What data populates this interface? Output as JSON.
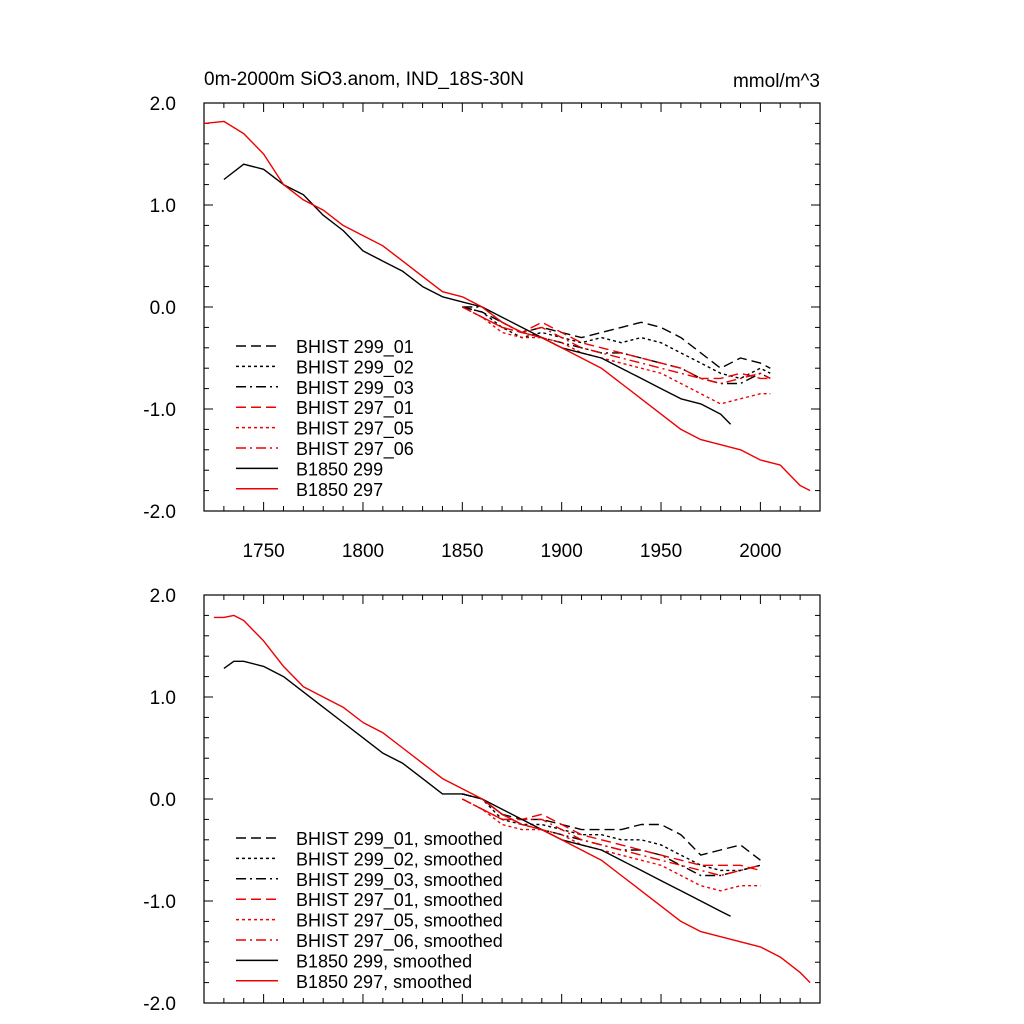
{
  "chart_data": [
    {
      "type": "line",
      "title": "0m-2000m SiO3.anom, IND_18S-30N",
      "units": "mmol/m^3",
      "xlabel": "",
      "ylabel": "",
      "xlim": [
        1720,
        2030
      ],
      "ylim": [
        -2.0,
        2.0
      ],
      "x_ticks": [
        "1750",
        "1800",
        "1850",
        "1900",
        "1950",
        "2000"
      ],
      "y_ticks": [
        "2.0",
        "1.0",
        "0.0",
        "-1.0",
        "-2.0"
      ],
      "legend_location": "lower-left",
      "series": [
        {
          "name": "BHIST 299_01",
          "color": "#000000",
          "dash": "dashed",
          "x": [
            1850,
            1860,
            1870,
            1880,
            1890,
            1900,
            1910,
            1920,
            1930,
            1940,
            1950,
            1960,
            1970,
            1980,
            1990,
            2000,
            2005
          ],
          "values": [
            0.0,
            -0.05,
            -0.15,
            -0.25,
            -0.2,
            -0.25,
            -0.3,
            -0.25,
            -0.2,
            -0.15,
            -0.2,
            -0.3,
            -0.45,
            -0.6,
            -0.5,
            -0.55,
            -0.6
          ]
        },
        {
          "name": "BHIST 299_02",
          "color": "#000000",
          "dash": "dotted",
          "x": [
            1850,
            1860,
            1870,
            1880,
            1890,
            1900,
            1910,
            1920,
            1930,
            1940,
            1950,
            1960,
            1970,
            1980,
            1990,
            2000,
            2005
          ],
          "values": [
            0.0,
            -0.05,
            -0.2,
            -0.3,
            -0.25,
            -0.3,
            -0.35,
            -0.3,
            -0.35,
            -0.3,
            -0.35,
            -0.45,
            -0.55,
            -0.65,
            -0.7,
            -0.6,
            -0.65
          ]
        },
        {
          "name": "BHIST 299_03",
          "color": "#000000",
          "dash": "dashdot",
          "x": [
            1850,
            1860,
            1870,
            1880,
            1890,
            1900,
            1910,
            1920,
            1930,
            1940,
            1950,
            1960,
            1970,
            1980,
            1990,
            2000,
            2005
          ],
          "values": [
            0.0,
            0.0,
            -0.15,
            -0.25,
            -0.3,
            -0.35,
            -0.4,
            -0.45,
            -0.45,
            -0.5,
            -0.55,
            -0.6,
            -0.7,
            -0.75,
            -0.75,
            -0.65,
            -0.7
          ]
        },
        {
          "name": "BHIST 297_01",
          "color": "#ee0000",
          "dash": "dashed",
          "x": [
            1850,
            1860,
            1870,
            1880,
            1890,
            1900,
            1910,
            1920,
            1930,
            1940,
            1950,
            1960,
            1970,
            1980,
            1990,
            2000,
            2005
          ],
          "values": [
            0.0,
            -0.1,
            -0.2,
            -0.25,
            -0.15,
            -0.25,
            -0.35,
            -0.4,
            -0.45,
            -0.5,
            -0.55,
            -0.6,
            -0.7,
            -0.7,
            -0.65,
            -0.7,
            -0.7
          ]
        },
        {
          "name": "BHIST 297_05",
          "color": "#ee0000",
          "dash": "dotted",
          "x": [
            1850,
            1860,
            1870,
            1880,
            1890,
            1900,
            1910,
            1920,
            1930,
            1940,
            1950,
            1960,
            1970,
            1980,
            1990,
            2000,
            2005
          ],
          "values": [
            0.0,
            -0.1,
            -0.25,
            -0.3,
            -0.3,
            -0.35,
            -0.45,
            -0.5,
            -0.55,
            -0.6,
            -0.65,
            -0.75,
            -0.85,
            -0.95,
            -0.9,
            -0.85,
            -0.85
          ]
        },
        {
          "name": "BHIST 297_06",
          "color": "#ee0000",
          "dash": "dashdot",
          "x": [
            1850,
            1860,
            1870,
            1880,
            1890,
            1900,
            1910,
            1920,
            1930,
            1940,
            1950,
            1960,
            1970,
            1980,
            1990,
            2000,
            2005
          ],
          "values": [
            0.0,
            -0.1,
            -0.2,
            -0.25,
            -0.2,
            -0.3,
            -0.4,
            -0.45,
            -0.5,
            -0.55,
            -0.6,
            -0.65,
            -0.7,
            -0.75,
            -0.7,
            -0.65,
            -0.7
          ]
        },
        {
          "name": "B1850 299",
          "color": "#000000",
          "dash": "solid",
          "x": [
            1730,
            1740,
            1750,
            1760,
            1770,
            1780,
            1790,
            1800,
            1810,
            1820,
            1830,
            1840,
            1850,
            1860,
            1870,
            1880,
            1890,
            1900,
            1910,
            1920,
            1930,
            1940,
            1950,
            1960,
            1970,
            1980,
            1985
          ],
          "values": [
            1.25,
            1.4,
            1.35,
            1.2,
            1.1,
            0.9,
            0.75,
            0.55,
            0.45,
            0.35,
            0.2,
            0.1,
            0.05,
            0.0,
            -0.1,
            -0.2,
            -0.3,
            -0.4,
            -0.45,
            -0.5,
            -0.6,
            -0.7,
            -0.8,
            -0.9,
            -0.95,
            -1.05,
            -1.15
          ]
        },
        {
          "name": "B1850 297",
          "color": "#ee0000",
          "dash": "solid",
          "x": [
            1720,
            1730,
            1740,
            1750,
            1760,
            1770,
            1780,
            1790,
            1800,
            1810,
            1820,
            1830,
            1840,
            1850,
            1860,
            1870,
            1880,
            1890,
            1900,
            1910,
            1920,
            1930,
            1940,
            1950,
            1960,
            1970,
            1980,
            1990,
            2000,
            2010,
            2020,
            2025
          ],
          "values": [
            1.8,
            1.82,
            1.7,
            1.5,
            1.2,
            1.05,
            0.95,
            0.8,
            0.7,
            0.6,
            0.45,
            0.3,
            0.15,
            0.1,
            0.0,
            -0.15,
            -0.25,
            -0.3,
            -0.4,
            -0.5,
            -0.6,
            -0.75,
            -0.9,
            -1.05,
            -1.2,
            -1.3,
            -1.35,
            -1.4,
            -1.5,
            -1.55,
            -1.75,
            -1.8
          ]
        }
      ]
    },
    {
      "type": "line",
      "title": "",
      "xlabel": "",
      "ylabel": "",
      "xlim": [
        1720,
        2030
      ],
      "ylim": [
        -2.0,
        2.0
      ],
      "y_ticks": [
        "2.0",
        "1.0",
        "0.0",
        "-1.0",
        "-2.0"
      ],
      "legend_location": "lower-left",
      "series": [
        {
          "name": "BHIST 299_01, smoothed",
          "color": "#000000",
          "dash": "dashed",
          "x": [
            1850,
            1860,
            1870,
            1880,
            1890,
            1900,
            1910,
            1920,
            1930,
            1940,
            1950,
            1960,
            1970,
            1980,
            1990,
            2000
          ],
          "values": [
            0.05,
            0.0,
            -0.15,
            -0.2,
            -0.2,
            -0.25,
            -0.3,
            -0.3,
            -0.3,
            -0.25,
            -0.25,
            -0.35,
            -0.55,
            -0.5,
            -0.45,
            -0.6
          ]
        },
        {
          "name": "BHIST 299_02, smoothed",
          "color": "#000000",
          "dash": "dotted",
          "x": [
            1850,
            1860,
            1870,
            1880,
            1890,
            1900,
            1910,
            1920,
            1930,
            1940,
            1950,
            1960,
            1970,
            1980,
            1990,
            2000
          ],
          "values": [
            0.05,
            0.0,
            -0.2,
            -0.25,
            -0.25,
            -0.3,
            -0.35,
            -0.35,
            -0.4,
            -0.4,
            -0.45,
            -0.55,
            -0.65,
            -0.7,
            -0.7,
            -0.65
          ]
        },
        {
          "name": "BHIST 299_03, smoothed",
          "color": "#000000",
          "dash": "dashdot",
          "x": [
            1850,
            1860,
            1870,
            1880,
            1890,
            1900,
            1910,
            1920,
            1930,
            1940,
            1950,
            1960,
            1970,
            1980,
            1990,
            2000
          ],
          "values": [
            0.05,
            0.0,
            -0.15,
            -0.25,
            -0.3,
            -0.35,
            -0.4,
            -0.45,
            -0.5,
            -0.5,
            -0.55,
            -0.65,
            -0.75,
            -0.75,
            -0.7,
            -0.65
          ]
        },
        {
          "name": "BHIST 297_01, smoothed",
          "color": "#ee0000",
          "dash": "dashed",
          "x": [
            1850,
            1860,
            1870,
            1880,
            1890,
            1900,
            1910,
            1920,
            1930,
            1940,
            1950,
            1960,
            1970,
            1980,
            1990,
            2000
          ],
          "values": [
            0.0,
            -0.1,
            -0.2,
            -0.2,
            -0.15,
            -0.25,
            -0.35,
            -0.4,
            -0.45,
            -0.5,
            -0.55,
            -0.6,
            -0.65,
            -0.65,
            -0.65,
            -0.7
          ]
        },
        {
          "name": "BHIST 297_05, smoothed",
          "color": "#ee0000",
          "dash": "dotted",
          "x": [
            1850,
            1860,
            1870,
            1880,
            1890,
            1900,
            1910,
            1920,
            1930,
            1940,
            1950,
            1960,
            1970,
            1980,
            1990,
            2000
          ],
          "values": [
            0.0,
            -0.1,
            -0.25,
            -0.3,
            -0.3,
            -0.35,
            -0.45,
            -0.5,
            -0.55,
            -0.6,
            -0.65,
            -0.75,
            -0.85,
            -0.9,
            -0.85,
            -0.85
          ]
        },
        {
          "name": "BHIST 297_06, smoothed",
          "color": "#ee0000",
          "dash": "dashdot",
          "x": [
            1850,
            1860,
            1870,
            1880,
            1890,
            1900,
            1910,
            1920,
            1930,
            1940,
            1950,
            1960,
            1970,
            1980,
            1990,
            2000
          ],
          "values": [
            0.0,
            -0.1,
            -0.2,
            -0.2,
            -0.2,
            -0.3,
            -0.4,
            -0.45,
            -0.5,
            -0.55,
            -0.6,
            -0.65,
            -0.7,
            -0.75,
            -0.7,
            -0.65
          ]
        },
        {
          "name": "B1850 299, smoothed",
          "color": "#000000",
          "dash": "solid",
          "x": [
            1730,
            1735,
            1740,
            1750,
            1760,
            1770,
            1780,
            1790,
            1800,
            1810,
            1820,
            1830,
            1840,
            1850,
            1860,
            1870,
            1880,
            1890,
            1900,
            1910,
            1920,
            1930,
            1940,
            1950,
            1960,
            1970,
            1980,
            1985
          ],
          "values": [
            1.28,
            1.35,
            1.35,
            1.3,
            1.2,
            1.05,
            0.9,
            0.75,
            0.6,
            0.45,
            0.35,
            0.2,
            0.05,
            0.05,
            0.0,
            -0.1,
            -0.2,
            -0.3,
            -0.4,
            -0.45,
            -0.5,
            -0.6,
            -0.7,
            -0.8,
            -0.9,
            -1.0,
            -1.1,
            -1.15
          ]
        },
        {
          "name": "B1850 297, smoothed",
          "color": "#ee0000",
          "dash": "solid",
          "x": [
            1725,
            1730,
            1735,
            1740,
            1750,
            1760,
            1770,
            1780,
            1790,
            1800,
            1810,
            1820,
            1830,
            1840,
            1850,
            1860,
            1870,
            1880,
            1890,
            1900,
            1910,
            1920,
            1930,
            1940,
            1950,
            1960,
            1970,
            1980,
            1990,
            2000,
            2010,
            2020,
            2025
          ],
          "values": [
            1.78,
            1.78,
            1.8,
            1.75,
            1.55,
            1.3,
            1.1,
            1.0,
            0.9,
            0.75,
            0.65,
            0.5,
            0.35,
            0.2,
            0.1,
            0.0,
            -0.15,
            -0.25,
            -0.3,
            -0.4,
            -0.5,
            -0.6,
            -0.75,
            -0.9,
            -1.05,
            -1.2,
            -1.3,
            -1.35,
            -1.4,
            -1.45,
            -1.55,
            -1.7,
            -1.8
          ]
        }
      ]
    }
  ]
}
